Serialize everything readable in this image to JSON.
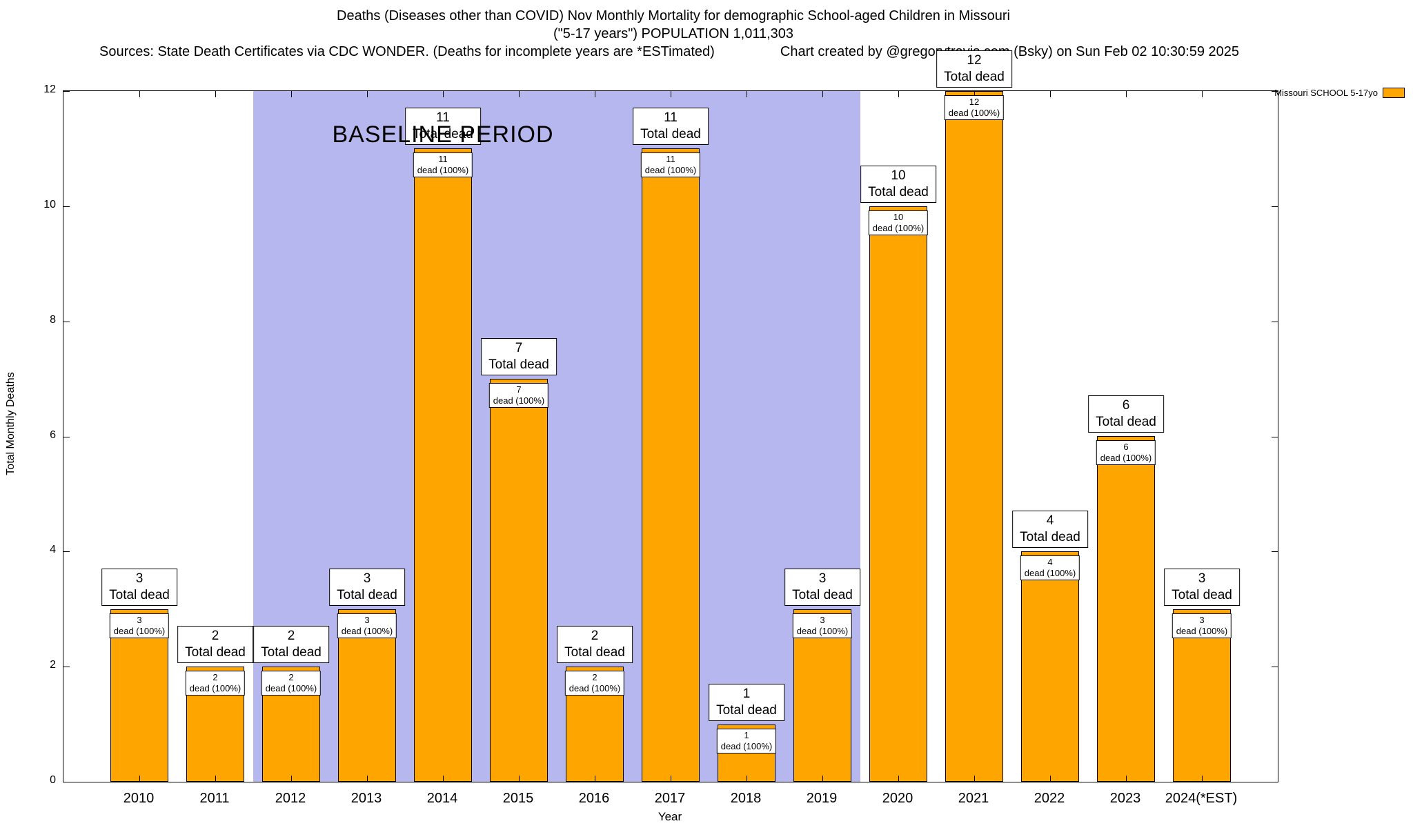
{
  "header": {
    "title": "Deaths (Diseases other than COVID) Nov Monthly Mortality for demographic School-aged Children in Missouri",
    "subtitle": "(\"5-17 years\") POPULATION 1,011,303",
    "sources": "Sources: State Death Certificates via CDC WONDER. (Deaths for incomplete years are *ESTimated)",
    "credit": "Chart created by @gregorytravis.com (Bsky) on Sun Feb 02 10:30:59 2025"
  },
  "legend": {
    "label": "Missouri SCHOOL 5-17yo",
    "swatch_color": "#FFA500"
  },
  "chart_data": {
    "type": "bar",
    "title": "Deaths (Diseases other than COVID) Nov Monthly Mortality for demographic School-aged Children in Missouri",
    "subtitle": "(\"5-17 years\") POPULATION 1,011,303",
    "xlabel": "Year",
    "ylabel": "Total Monthly Deaths",
    "ylim": [
      0,
      12
    ],
    "yticks": [
      0,
      2,
      4,
      6,
      8,
      10,
      12
    ],
    "categories": [
      "2010",
      "2011",
      "2012",
      "2013",
      "2014",
      "2015",
      "2016",
      "2017",
      "2018",
      "2019",
      "2020",
      "2021",
      "2022",
      "2023",
      "2024(*EST)"
    ],
    "values": [
      3,
      2,
      2,
      3,
      11,
      7,
      2,
      11,
      1,
      3,
      10,
      12,
      4,
      6,
      3
    ],
    "series_name": "Missouri SCHOOL 5-17yo",
    "bar_color": "#FFA500",
    "labels": {
      "total": "Total dead",
      "inner": "dead (100%)"
    },
    "baseline_region": {
      "label": "BASELINE PERIOD",
      "start_category": "2012",
      "end_category": "2019",
      "color": "#b7b7f0"
    },
    "legend_position": "top-right",
    "grid": false
  }
}
